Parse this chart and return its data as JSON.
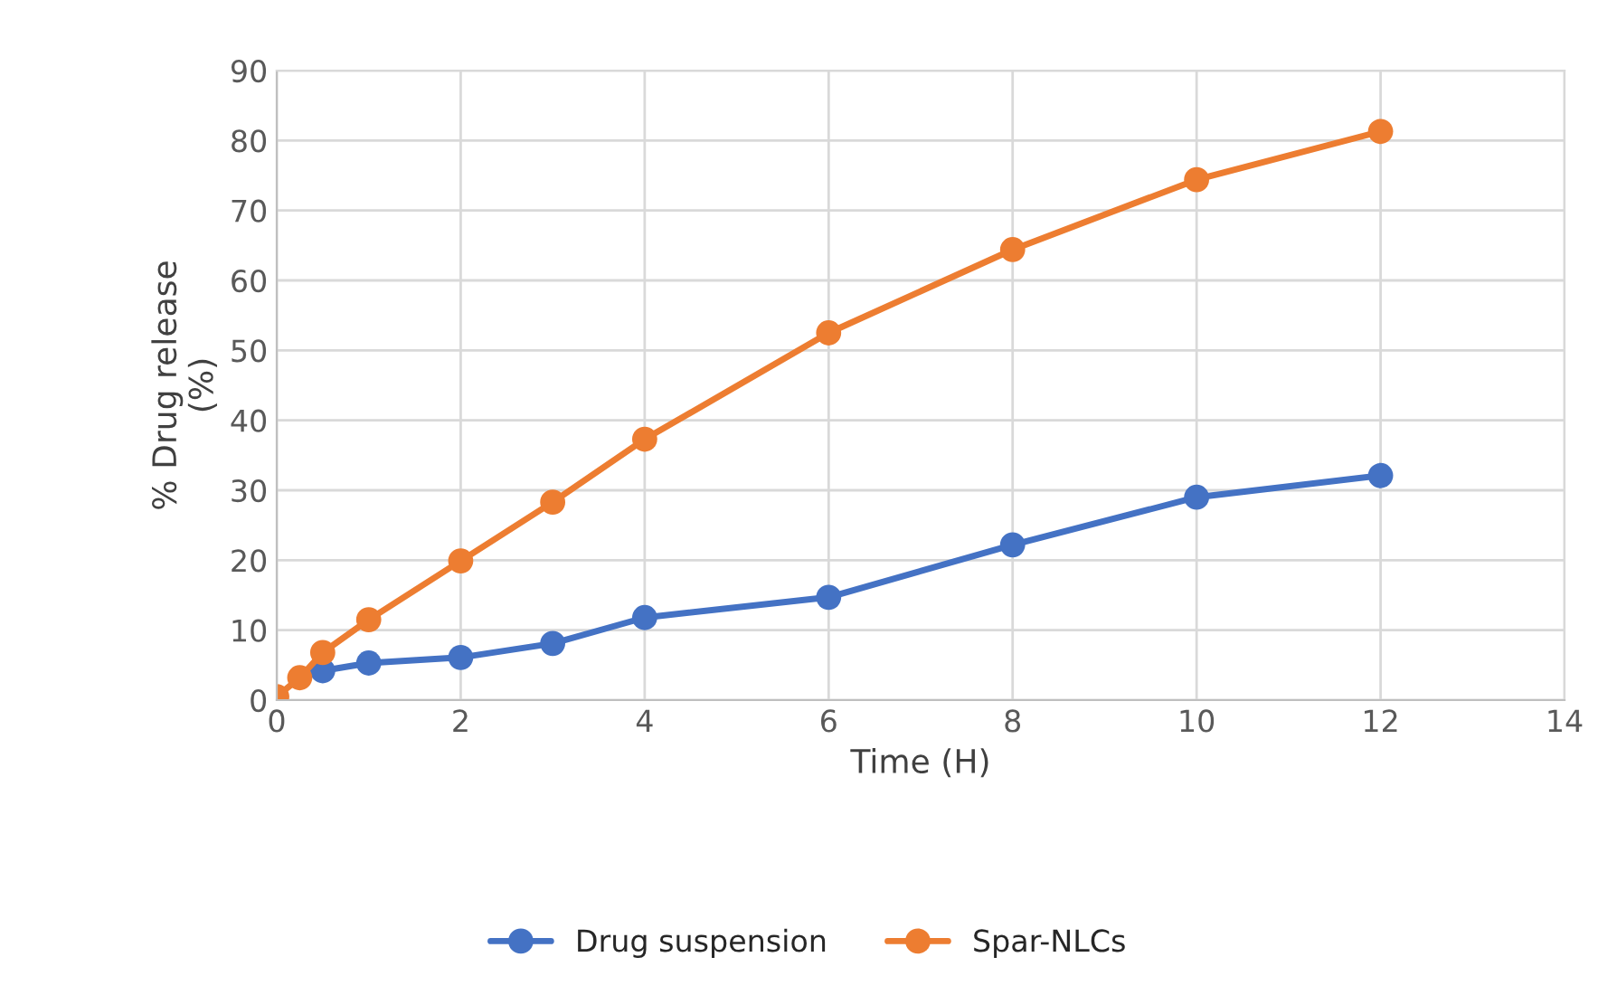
{
  "chart_data": {
    "type": "line",
    "xlabel": "Time (H)",
    "ylabel": "% Drug release\n(%)",
    "x": [
      0,
      0.25,
      0.5,
      1,
      2,
      3,
      4,
      6,
      8,
      10,
      12
    ],
    "series": [
      {
        "name": "Drug suspension",
        "color": "#4472c4",
        "values": [
          null,
          null,
          4.2,
          5.3,
          6.1,
          8.1,
          11.8,
          14.7,
          22.2,
          29.0,
          32.1
        ]
      },
      {
        "name": "Spar-NLCs",
        "color": "#ed7d31",
        "values": [
          0.5,
          3.2,
          6.8,
          11.5,
          19.9,
          28.3,
          37.3,
          52.5,
          64.4,
          74.4,
          81.3
        ]
      }
    ],
    "xlim": [
      0,
      14
    ],
    "xticks": [
      0,
      2,
      4,
      6,
      8,
      10,
      12,
      14
    ],
    "ylim": [
      0,
      90
    ],
    "yticks": [
      0,
      10,
      20,
      30,
      40,
      50,
      60,
      70,
      80,
      90
    ],
    "grid": true,
    "legend": "bottom",
    "marker": "circle",
    "line_style": "solid"
  }
}
